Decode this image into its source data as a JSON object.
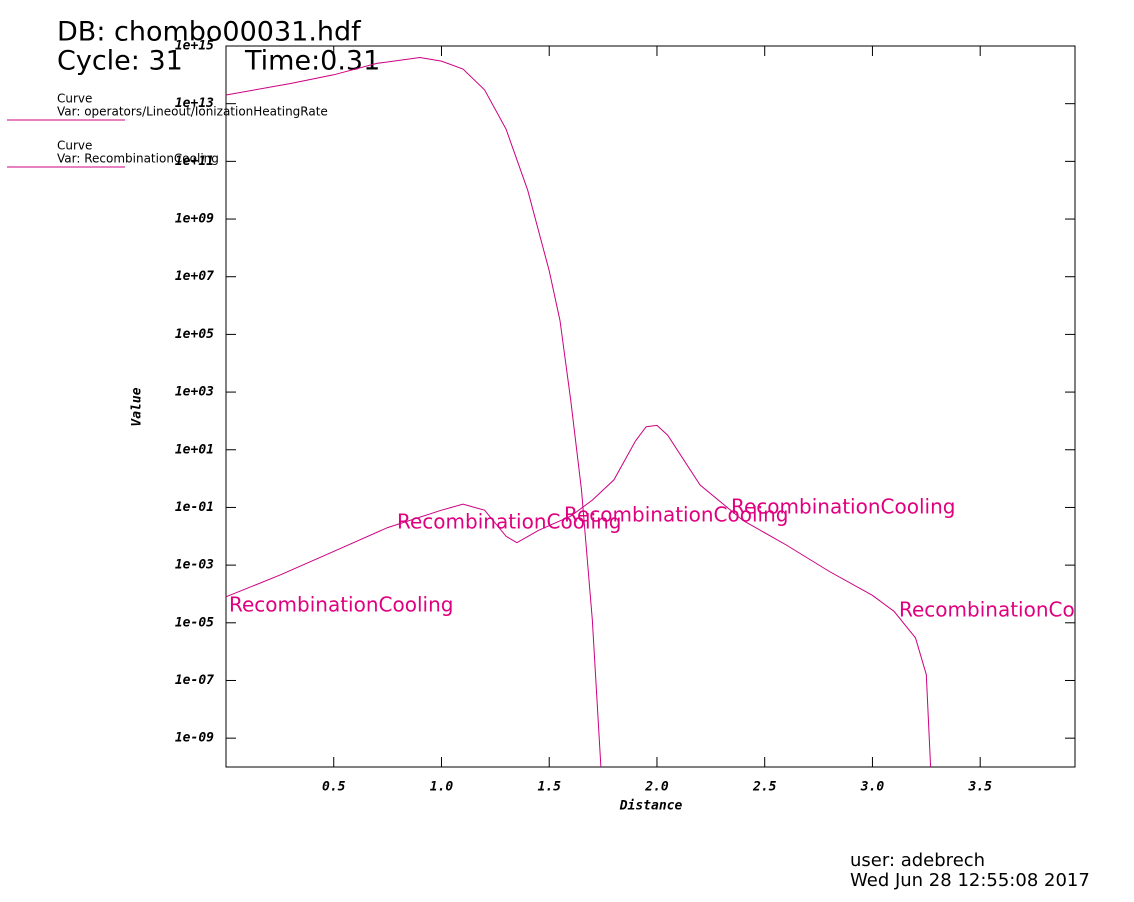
{
  "header": {
    "db": "DB: chombo00031.hdf",
    "cycle": "Cycle: 31",
    "time": "Time:0.31"
  },
  "footer": {
    "user": "user: adebrech",
    "date": "Wed Jun 28 12:55:08 2017"
  },
  "chart_data": {
    "type": "line",
    "x_label": "Distance",
    "y_label": "Value",
    "log_y": true,
    "grid": false,
    "xlim": [
      0,
      3.94
    ],
    "xticks": [
      0.5,
      {
        "value": 1,
        "label": "1.0"
      },
      1.5,
      {
        "value": 2,
        "label": "2.0"
      },
      2.5,
      {
        "value": 3,
        "label": "3.0"
      },
      3.5
    ],
    "ylim": [
      1e-10,
      1000000000000000.0
    ],
    "yticks": [
      {
        "value": 1e-09,
        "label": "1e-09"
      },
      {
        "value": 1e-07,
        "label": "1e-07"
      },
      {
        "value": 1e-05,
        "label": "1e-05"
      },
      {
        "value": 0.001,
        "label": "1e-03"
      },
      {
        "value": 0.1,
        "label": "1e-01"
      },
      {
        "value": 10,
        "label": "1e+01"
      },
      {
        "value": 1000,
        "label": "1e+03"
      },
      {
        "value": 100000.0,
        "label": "1e+05"
      },
      {
        "value": 10000000.0,
        "label": "1e+07"
      },
      {
        "value": 1000000000.0,
        "label": "1e+09"
      },
      {
        "value": 100000000000.0,
        "label": "1e+11"
      },
      {
        "value": 10000000000000.0,
        "label": "1e+13"
      },
      {
        "value": 1000000000000000.0,
        "label": "1e+15"
      }
    ],
    "series": [
      {
        "label": "Curve",
        "name": "Var: operators/Lineout/IonizationHeatingRate",
        "color": "#cc0080",
        "x": [
          0,
          0.3,
          0.5,
          0.7,
          0.9,
          1.0,
          1.1,
          1.2,
          1.3,
          1.4,
          1.5,
          1.55,
          1.6,
          1.65,
          1.7,
          1.74
        ],
        "values": [
          20000000000000.0,
          50000000000000.0,
          100000000000000.0,
          250000000000000.0,
          400000000000000.0,
          300000000000000.0,
          160000000000000.0,
          30000000000000.0,
          1300000000000.0,
          10000000000.0,
          16000000.0,
          300000.0,
          500,
          0.4,
          1.3e-05,
          1e-10
        ]
      },
      {
        "label": "Curve",
        "name": "Var: RecombinationCooling",
        "color": "#cc0080",
        "x": [
          0,
          0.25,
          0.5,
          0.75,
          1.0,
          1.1,
          1.2,
          1.3,
          1.35,
          1.45,
          1.6,
          1.7,
          1.8,
          1.9,
          1.95,
          2.0,
          2.05,
          2.2,
          2.4,
          2.6,
          2.8,
          3.0,
          3.1,
          3.2,
          3.25,
          3.27
        ],
        "values": [
          8e-05,
          0.00045,
          0.003,
          0.02,
          0.08,
          0.13,
          0.08,
          0.01,
          0.006,
          0.016,
          0.05,
          0.18,
          0.9,
          20,
          63,
          70,
          32,
          0.6,
          0.035,
          0.005,
          0.0006,
          9e-05,
          2.5e-05,
          3e-06,
          1.6e-07,
          1e-10
        ]
      }
    ],
    "annotations": [
      "RecombinationCooling",
      "RecombinationCooling",
      "RecombinationCooling",
      "RecombinationCooling",
      "RecombinationCooling"
    ]
  }
}
